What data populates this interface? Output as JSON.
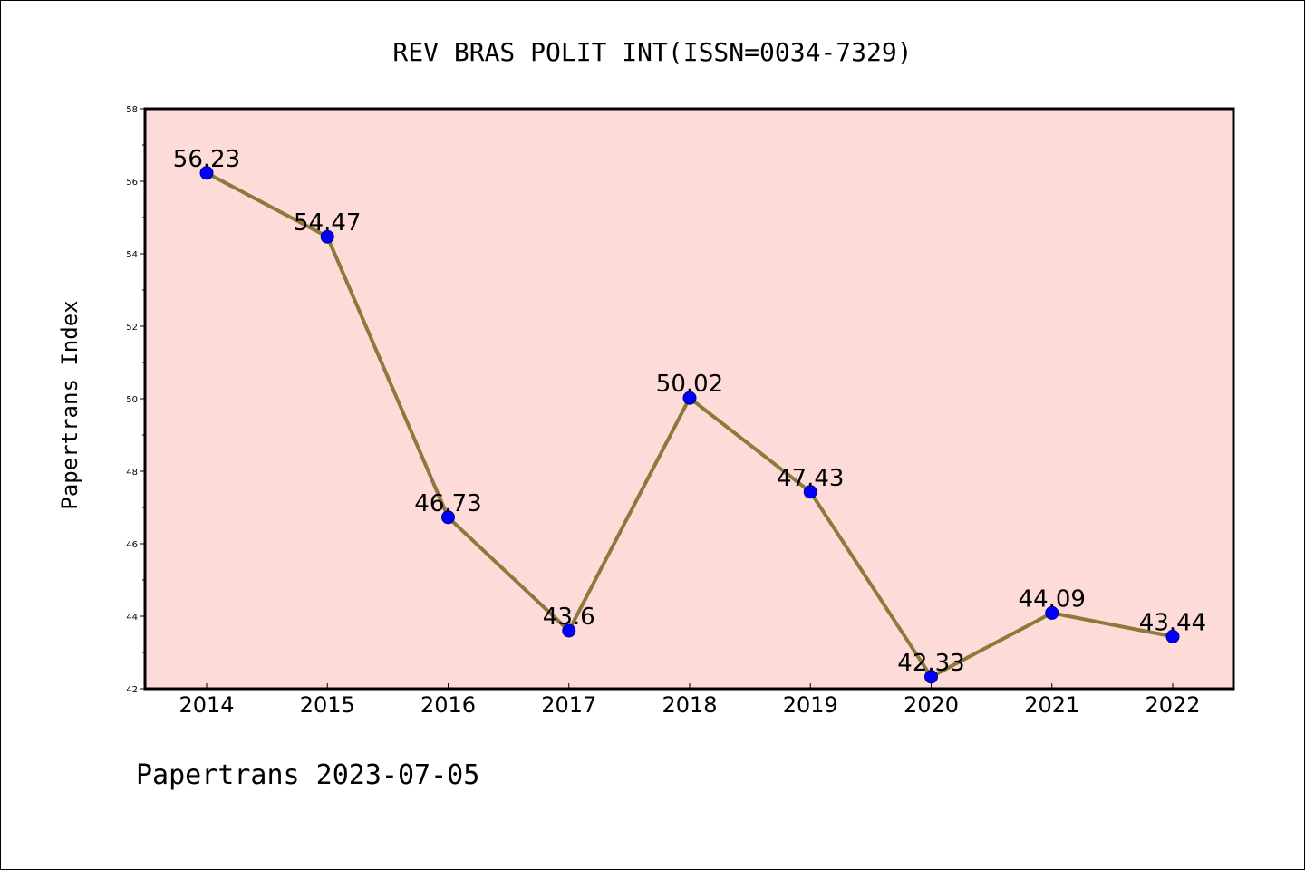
{
  "chart_data": {
    "type": "line",
    "title": "REV BRAS POLIT INT(ISSN=0034-7329)",
    "xlabel": "",
    "ylabel": "Papertrans Index",
    "footer": "Papertrans 2023-07-05",
    "categories": [
      "2014",
      "2015",
      "2016",
      "2017",
      "2018",
      "2019",
      "2020",
      "2021",
      "2022"
    ],
    "values": [
      56.23,
      54.47,
      46.73,
      43.6,
      50.02,
      47.43,
      42.33,
      44.09,
      43.44
    ],
    "value_labels": [
      "56.23",
      "54.47",
      "46.73",
      "43.6",
      "50.02",
      "47.43",
      "42.33",
      "44.09",
      "43.44"
    ],
    "ylim": [
      42,
      58
    ],
    "yticks": [
      42,
      44,
      46,
      48,
      50,
      52,
      54,
      56,
      58
    ],
    "grid": false,
    "legend": "none",
    "colors": {
      "plot_background": "#fddbd8",
      "line": "#8b7a3a",
      "marker": "#0000ff",
      "marker_edge": "#000080",
      "axis": "#000000"
    }
  }
}
